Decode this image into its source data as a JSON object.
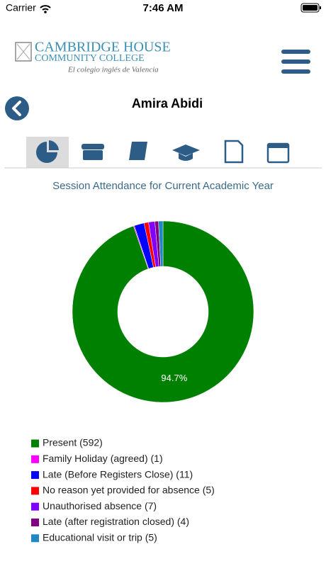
{
  "status_bar": {
    "carrier": "Carrier",
    "time": "7:46 AM"
  },
  "header": {
    "logo_line1": "CAMBRIDGE HOUSE",
    "logo_line2": "COMMUNITY COLLEGE",
    "logo_tagline": "El colegio inglés de Valencia"
  },
  "student_name": "Amira Abidi",
  "chart_data": {
    "type": "donut",
    "title": "Session Attendance for Current Academic Year",
    "categories": [
      "Present (592)",
      "Family Holiday (agreed) (1)",
      "Late (Before Registers Close) (11)",
      "No reason yet provided for absence (5)",
      "Unauthorised absence (7)",
      "Late (after registration closed) (4)",
      "Educational visit or trip (5)"
    ],
    "values": [
      592,
      1,
      11,
      5,
      7,
      4,
      5
    ],
    "colors": [
      "#008000",
      "#ff00ff",
      "#0000ff",
      "#ff0000",
      "#8000ff",
      "#800080",
      "#1f88c0"
    ],
    "value_labels": [
      "94.7%",
      null,
      null,
      null,
      null,
      null,
      null
    ]
  }
}
